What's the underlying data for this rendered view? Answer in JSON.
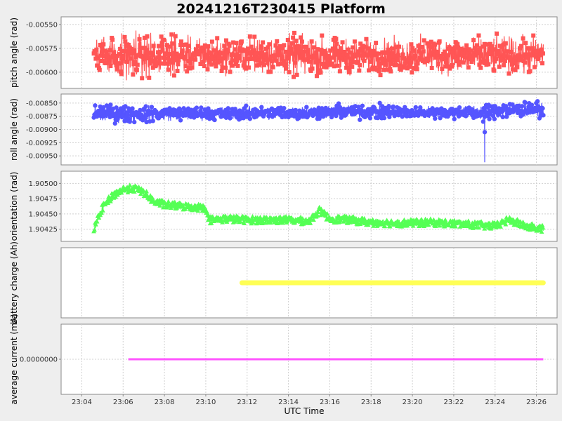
{
  "chart_data": {
    "type": "line",
    "title": "20241216T230415 Platform",
    "xlabel": "UTC Time",
    "x_ticks": [
      "23:04",
      "23:06",
      "23:08",
      "23:10",
      "23:12",
      "23:14",
      "23:16",
      "23:18",
      "23:20",
      "23:22",
      "23:24",
      "23:26"
    ],
    "x_range_minutes": [
      "23:03",
      "23:27"
    ],
    "grid": true,
    "panels": [
      {
        "name": "pitch",
        "ylabel": "pitch angle (rad)",
        "color": "#ff5555",
        "marker": "square",
        "ylim": [
          -0.00617,
          -0.00542
        ],
        "y_ticks": [
          "-0.00550",
          "-0.00575",
          "-0.00600"
        ],
        "y_tick_values": [
          -0.0055,
          -0.00575,
          -0.006
        ],
        "series": {
          "x": [
            "23:04:35",
            "23:06:30",
            "23:08:30",
            "23:10:30",
            "23:12:30",
            "23:14:30",
            "23:16:30",
            "23:18:30",
            "23:20:30",
            "23:22:30",
            "23:24:30",
            "23:26:20"
          ],
          "mean": [
            -0.0058,
            -0.00583,
            -0.00582,
            -0.00583,
            -0.00582,
            -0.00583,
            -0.00584,
            -0.00583,
            -0.00582,
            -0.00583,
            -0.00582,
            -0.00583
          ],
          "min": [
            -0.00612,
            -0.00616,
            -0.00608,
            -0.00608,
            -0.00609,
            -0.00609,
            -0.0061,
            -0.00608,
            -0.00609,
            -0.00609,
            -0.0061,
            -0.00608
          ],
          "max": [
            -0.00557,
            -0.00551,
            -0.00556,
            -0.00557,
            -0.00557,
            -0.00548,
            -0.00558,
            -0.00558,
            -0.00555,
            -0.00556,
            -0.00558,
            -0.00551
          ]
        }
      },
      {
        "name": "roll",
        "ylabel": "roll angle (rad)",
        "color": "#5555ff",
        "marker": "circle",
        "ylim": [
          -0.00967,
          -0.00833
        ],
        "y_ticks": [
          "-0.00850",
          "-0.00875",
          "-0.00900",
          "-0.00925",
          "-0.00950"
        ],
        "y_tick_values": [
          -0.0085,
          -0.00875,
          -0.009,
          -0.00925,
          -0.0095
        ],
        "series": {
          "x": [
            "23:04:35",
            "23:06:30",
            "23:08:30",
            "23:10:30",
            "23:12:30",
            "23:14:30",
            "23:16:30",
            "23:18:30",
            "23:20:30",
            "23:22:30",
            "23:23:30",
            "23:24:30",
            "23:26:20"
          ],
          "mean": [
            -0.0087,
            -0.00871,
            -0.0087,
            -0.0087,
            -0.00869,
            -0.00868,
            -0.00867,
            -0.00867,
            -0.00867,
            -0.00868,
            -0.00868,
            -0.00863,
            -0.00863
          ],
          "min": [
            -0.00893,
            -0.00892,
            -0.00888,
            -0.00886,
            -0.00885,
            -0.00887,
            -0.00888,
            -0.00889,
            -0.00884,
            -0.00888,
            -0.00888,
            -0.00886,
            -0.0088
          ],
          "max": [
            -0.00845,
            -0.00849,
            -0.00852,
            -0.00852,
            -0.0085,
            -0.00851,
            -0.0085,
            -0.0085,
            -0.00853,
            -0.00853,
            -0.00843,
            -0.0084,
            -0.00845
          ]
        },
        "outliers": [
          {
            "x": "23:23:30",
            "y": -0.00895
          },
          {
            "x": "23:23:30",
            "y": -0.00905
          },
          {
            "x": "23:23:30",
            "y": -0.00962
          }
        ]
      },
      {
        "name": "orientation",
        "ylabel": "orientation (rad)",
        "color": "#55ff55",
        "marker": "triangle",
        "ylim": [
          1.90405,
          1.9052
        ],
        "y_ticks": [
          "1.90500",
          "1.90475",
          "1.90450",
          "1.90425"
        ],
        "y_tick_values": [
          1.905,
          1.90475,
          1.9045,
          1.90425
        ],
        "series": {
          "x": [
            "23:04:35",
            "23:05:00",
            "23:05:30",
            "23:06:00",
            "23:06:30",
            "23:07:00",
            "23:07:30",
            "23:08:00",
            "23:09:00",
            "23:10:00",
            "23:10:10",
            "23:11:00",
            "23:12:00",
            "23:13:00",
            "23:14:00",
            "23:15:00",
            "23:15:30",
            "23:16:00",
            "23:17:00",
            "23:18:00",
            "23:19:00",
            "23:20:00",
            "23:21:00",
            "23:22:00",
            "23:23:00",
            "23:24:00",
            "23:24:40",
            "23:25:30",
            "23:26:20"
          ],
          "mean": [
            1.90425,
            1.9046,
            1.9048,
            1.9049,
            1.90492,
            1.90485,
            1.9047,
            1.90465,
            1.90462,
            1.9046,
            1.9044,
            1.90442,
            1.9044,
            1.9044,
            1.9044,
            1.90438,
            1.90455,
            1.90442,
            1.9044,
            1.90436,
            1.90435,
            1.90435,
            1.90436,
            1.90434,
            1.90432,
            1.9043,
            1.9044,
            1.9043,
            1.90425
          ],
          "spread": [
            0.0001,
            0.00012,
            0.00012,
            0.00012,
            0.00012,
            0.00012,
            0.00012,
            0.00012,
            0.00012,
            0.00012,
            0.00012,
            0.00012,
            0.00012,
            0.00012,
            0.00012,
            0.00012,
            0.00012,
            0.00012,
            0.00012,
            0.00012,
            0.00012,
            0.00012,
            0.00012,
            0.00012,
            0.00012,
            0.00012,
            0.00012,
            0.00012,
            0.00012
          ]
        }
      },
      {
        "name": "battery",
        "ylabel": "battery charge (Ah)",
        "color": "#ffff55",
        "marker": "circle",
        "y_ticks": [],
        "series": {
          "x": [
            "23:11:45",
            "23:26:20"
          ],
          "y": [
            0,
            0
          ]
        }
      },
      {
        "name": "current",
        "ylabel": "average current (mA)",
        "color": "#ff55ff",
        "marker": "line",
        "y_ticks": [
          "0.0000000"
        ],
        "y_tick_values": [
          0
        ],
        "series": {
          "x": [
            "23:06:15",
            "23:26:20"
          ],
          "y": [
            0,
            0
          ]
        }
      }
    ]
  }
}
